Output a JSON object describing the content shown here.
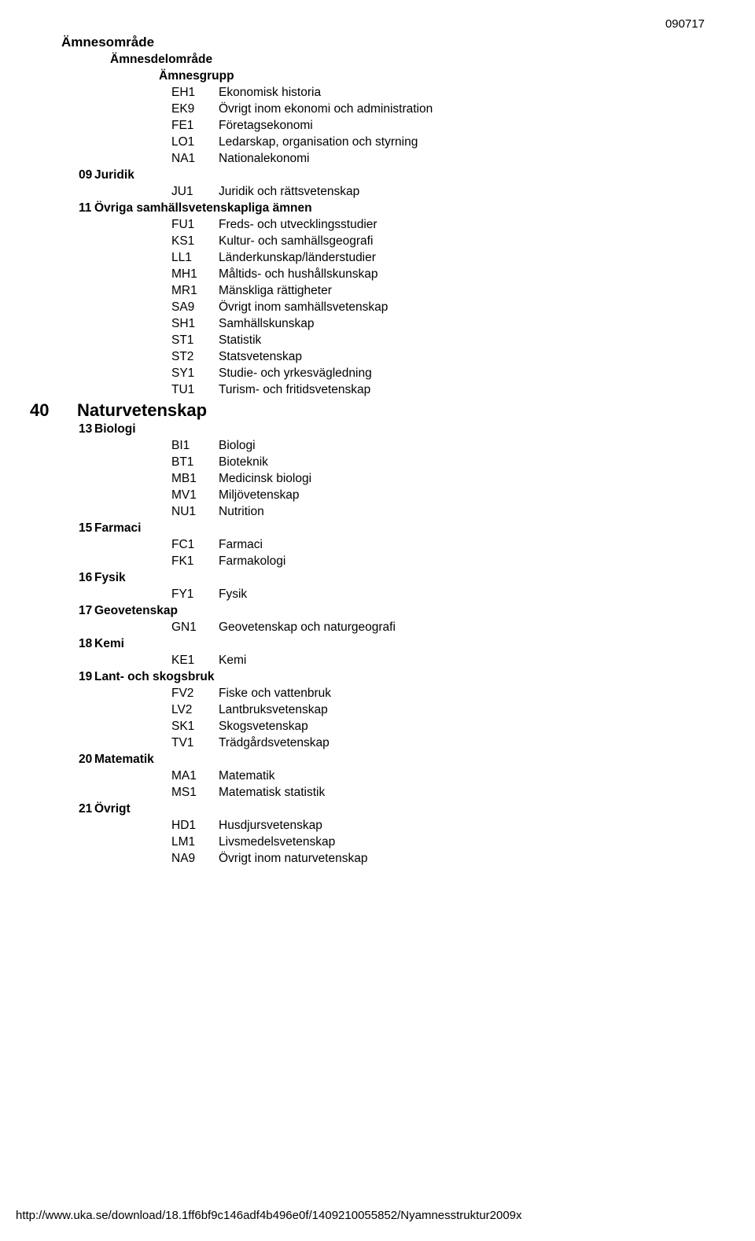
{
  "page_date": "090717",
  "footer_url": "http://www.uka.se/download/18.1ff6bf9c146adf4b496e0f/1409210055852/Nyamnesstruktur2009x",
  "headers": {
    "h1": "Ämnesområde",
    "h2": "Ämnesdelområde",
    "h3": "Ämnesgrupp"
  },
  "lines": [
    {
      "type": "item",
      "code": "EH1",
      "label": "Ekonomisk historia"
    },
    {
      "type": "item",
      "code": "EK9",
      "label": "Övrigt inom ekonomi och administration"
    },
    {
      "type": "item",
      "code": "FE1",
      "label": "Företagsekonomi"
    },
    {
      "type": "item",
      "code": "LO1",
      "label": "Ledarskap, organisation och styrning"
    },
    {
      "type": "item",
      "code": "NA1",
      "label": "Nationalekonomi"
    },
    {
      "type": "sub",
      "num": "09",
      "label": "Juridik"
    },
    {
      "type": "item",
      "code": "JU1",
      "label": "Juridik och rättsvetenskap"
    },
    {
      "type": "sub",
      "num": "11",
      "label": "Övriga samhällsvetenskapliga ämnen"
    },
    {
      "type": "item",
      "code": "FU1",
      "label": "Freds- och utvecklingsstudier"
    },
    {
      "type": "item",
      "code": "KS1",
      "label": "Kultur- och samhällsgeografi"
    },
    {
      "type": "item",
      "code": "LL1",
      "label": "Länderkunskap/länderstudier"
    },
    {
      "type": "item",
      "code": "MH1",
      "label": "Måltids- och  hushållskunskap"
    },
    {
      "type": "item",
      "code": "MR1",
      "label": "Mänskliga rättigheter"
    },
    {
      "type": "item",
      "code": "SA9",
      "label": "Övrigt inom samhällsvetenskap"
    },
    {
      "type": "item",
      "code": "SH1",
      "label": "Samhällskunskap"
    },
    {
      "type": "item",
      "code": "ST1",
      "label": "Statistik"
    },
    {
      "type": "item",
      "code": "ST2",
      "label": "Statsvetenskap"
    },
    {
      "type": "item",
      "code": "SY1",
      "label": "Studie- och yrkesvägledning"
    },
    {
      "type": "item",
      "code": "TU1",
      "label": "Turism- och fritidsvetenskap"
    },
    {
      "type": "main",
      "num": "40",
      "label": "Naturvetenskap"
    },
    {
      "type": "sub",
      "num": "13",
      "label": "Biologi"
    },
    {
      "type": "item",
      "code": "BI1",
      "label": "Biologi"
    },
    {
      "type": "item",
      "code": "BT1",
      "label": "Bioteknik"
    },
    {
      "type": "item",
      "code": "MB1",
      "label": "Medicinsk biologi"
    },
    {
      "type": "item",
      "code": "MV1",
      "label": "Miljövetenskap"
    },
    {
      "type": "item",
      "code": "NU1",
      "label": "Nutrition"
    },
    {
      "type": "sub",
      "num": "15",
      "label": "Farmaci"
    },
    {
      "type": "item",
      "code": "FC1",
      "label": "Farmaci"
    },
    {
      "type": "item",
      "code": "FK1",
      "label": "Farmakologi"
    },
    {
      "type": "sub",
      "num": "16",
      "label": "Fysik"
    },
    {
      "type": "item",
      "code": "FY1",
      "label": "Fysik"
    },
    {
      "type": "sub",
      "num": "17",
      "label": "Geovetenskap"
    },
    {
      "type": "item",
      "code": "GN1",
      "label": "Geovetenskap och naturgeografi"
    },
    {
      "type": "sub",
      "num": "18",
      "label": "Kemi"
    },
    {
      "type": "item",
      "code": "KE1",
      "label": "Kemi"
    },
    {
      "type": "sub",
      "num": "19",
      "label": "Lant- och skogsbruk"
    },
    {
      "type": "item",
      "code": "FV2",
      "label": "Fiske och vattenbruk"
    },
    {
      "type": "item",
      "code": "LV2",
      "label": "Lantbruksvetenskap"
    },
    {
      "type": "item",
      "code": "SK1",
      "label": "Skogsvetenskap"
    },
    {
      "type": "item",
      "code": "TV1",
      "label": "Trädgårdsvetenskap"
    },
    {
      "type": "sub",
      "num": "20",
      "label": "Matematik"
    },
    {
      "type": "item",
      "code": "MA1",
      "label": "Matematik"
    },
    {
      "type": "item",
      "code": "MS1",
      "label": "Matematisk statistik"
    },
    {
      "type": "sub",
      "num": "21",
      "label": "Övrigt"
    },
    {
      "type": "item",
      "code": "HD1",
      "label": "Husdjursvetenskap"
    },
    {
      "type": "item",
      "code": "LM1",
      "label": "Livsmedelsvetenskap"
    },
    {
      "type": "item",
      "code": "NA9",
      "label": "Övrigt inom naturvetenskap"
    }
  ]
}
